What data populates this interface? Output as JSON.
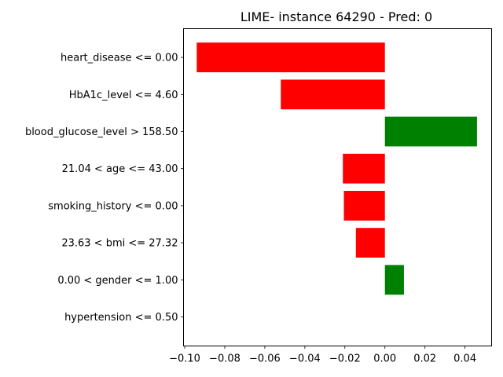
{
  "chart_data": {
    "type": "bar",
    "orientation": "horizontal",
    "title": "LIME- instance 64290 - Pred: 0",
    "xlabel": "",
    "ylabel": "",
    "categories": [
      "heart_disease <= 0.00",
      "HbA1c_level <= 4.60",
      "blood_glucose_level > 158.50",
      "21.04 < age <= 43.00",
      "smoking_history <= 0.00",
      "23.63 < bmi <= 27.32",
      "0.00 < gender <= 1.00",
      "hypertension <= 0.50"
    ],
    "values": [
      -0.094,
      -0.052,
      0.046,
      -0.021,
      -0.0205,
      -0.0145,
      0.0095,
      0.0
    ],
    "xlim": [
      -0.1006,
      0.0533
    ],
    "xticks": [
      -0.1,
      -0.08,
      -0.06,
      -0.04,
      -0.02,
      0.0,
      0.02,
      0.04
    ],
    "xtick_labels": [
      "−0.10",
      "−0.08",
      "−0.06",
      "−0.04",
      "−0.02",
      "0.00",
      "0.02",
      "0.04"
    ],
    "grid": false,
    "colors": {
      "positive": "#008000",
      "negative": "#ff0000",
      "axis": "#000000",
      "background": "#ffffff"
    }
  }
}
